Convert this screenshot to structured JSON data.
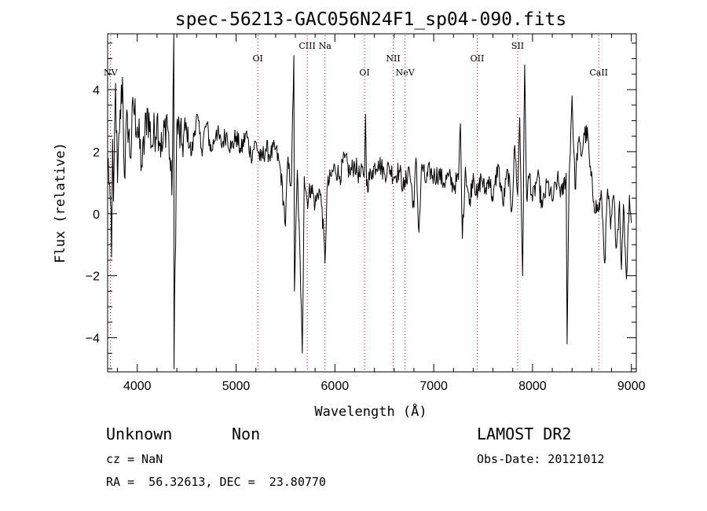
{
  "chart_data": {
    "type": "line",
    "title": "spec-56213-GAC056N24F1_sp04-090.fits",
    "xlabel": "Wavelength (Å)",
    "ylabel": "Flux (relative)",
    "xlim": [
      3700,
      9050
    ],
    "ylim": [
      -5.1,
      5.8
    ],
    "xticks": [
      4000,
      5000,
      6000,
      7000,
      8000,
      9000
    ],
    "xtick_labels": [
      "4000",
      "5000",
      "6000",
      "7000",
      "8000",
      "9000"
    ],
    "yticks": [
      -4,
      -2,
      0,
      2,
      4
    ],
    "ytick_labels": [
      "−4",
      "−2",
      "0",
      "2",
      "4"
    ],
    "grid": false,
    "line_color": "#000000",
    "marker_color": "#cc0000",
    "spectrum_anchors": [
      [
        3700,
        1.8
      ],
      [
        3720,
        1.0
      ],
      [
        3740,
        -1.4
      ],
      [
        3750,
        2.4
      ],
      [
        3760,
        0.4
      ],
      [
        3780,
        4.2
      ],
      [
        3800,
        1.0
      ],
      [
        3820,
        2.6
      ],
      [
        3850,
        4.4
      ],
      [
        3870,
        1.2
      ],
      [
        3900,
        3.2
      ],
      [
        3930,
        1.8
      ],
      [
        3960,
        3.5
      ],
      [
        4000,
        2.8
      ],
      [
        4050,
        1.5
      ],
      [
        4100,
        3.4
      ],
      [
        4150,
        2.2
      ],
      [
        4200,
        3.1
      ],
      [
        4250,
        2.0
      ],
      [
        4300,
        3.2
      ],
      [
        4330,
        1.8
      ],
      [
        4350,
        0.6
      ],
      [
        4370,
        5.8
      ],
      [
        4372,
        -5.0
      ],
      [
        4400,
        2.9
      ],
      [
        4450,
        2.2
      ],
      [
        4500,
        2.7
      ],
      [
        4550,
        1.9
      ],
      [
        4600,
        3.2
      ],
      [
        4650,
        2.1
      ],
      [
        4700,
        2.9
      ],
      [
        4750,
        2.0
      ],
      [
        4800,
        2.7
      ],
      [
        4850,
        2.2
      ],
      [
        4900,
        2.6
      ],
      [
        4950,
        2.1
      ],
      [
        5000,
        2.5
      ],
      [
        5050,
        2.0
      ],
      [
        5100,
        2.6
      ],
      [
        5150,
        1.9
      ],
      [
        5200,
        2.3
      ],
      [
        5250,
        1.7
      ],
      [
        5300,
        2.1
      ],
      [
        5350,
        1.9
      ],
      [
        5400,
        2.1
      ],
      [
        5450,
        1.4
      ],
      [
        5480,
        0.4
      ],
      [
        5500,
        -0.4
      ],
      [
        5520,
        1.6
      ],
      [
        5560,
        1.0
      ],
      [
        5585,
        5.1
      ],
      [
        5590,
        -2.5
      ],
      [
        5620,
        1.4
      ],
      [
        5660,
        -3.0
      ],
      [
        5670,
        -4.5
      ],
      [
        5690,
        1.2
      ],
      [
        5720,
        0.4
      ],
      [
        5760,
        0.9
      ],
      [
        5800,
        0.3
      ],
      [
        5840,
        0.8
      ],
      [
        5870,
        0.2
      ],
      [
        5900,
        -1.6
      ],
      [
        5920,
        0.8
      ],
      [
        5960,
        1.2
      ],
      [
        6000,
        1.5
      ],
      [
        6050,
        1.2
      ],
      [
        6100,
        1.8
      ],
      [
        6150,
        1.3
      ],
      [
        6200,
        1.6
      ],
      [
        6250,
        1.2
      ],
      [
        6300,
        1.4
      ],
      [
        6310,
        3.2
      ],
      [
        6320,
        0.9
      ],
      [
        6380,
        1.4
      ],
      [
        6440,
        1.7
      ],
      [
        6500,
        1.3
      ],
      [
        6550,
        1.5
      ],
      [
        6600,
        1.2
      ],
      [
        6650,
        1.4
      ],
      [
        6700,
        0.8
      ],
      [
        6750,
        1.5
      ],
      [
        6800,
        0.2
      ],
      [
        6820,
        1.8
      ],
      [
        6850,
        -0.6
      ],
      [
        6880,
        1.6
      ],
      [
        6920,
        1.0
      ],
      [
        6960,
        1.4
      ],
      [
        7000,
        1.2
      ],
      [
        7050,
        1.3
      ],
      [
        7100,
        1.0
      ],
      [
        7150,
        1.2
      ],
      [
        7200,
        0.9
      ],
      [
        7250,
        1.1
      ],
      [
        7270,
        2.9
      ],
      [
        7290,
        -0.8
      ],
      [
        7320,
        1.5
      ],
      [
        7360,
        0.3
      ],
      [
        7400,
        1.3
      ],
      [
        7440,
        0.5
      ],
      [
        7480,
        1.2
      ],
      [
        7520,
        0.7
      ],
      [
        7560,
        1.2
      ],
      [
        7600,
        0.4
      ],
      [
        7650,
        1.6
      ],
      [
        7700,
        0.3
      ],
      [
        7750,
        1.4
      ],
      [
        7790,
        0.1
      ],
      [
        7820,
        2.2
      ],
      [
        7850,
        0.6
      ],
      [
        7870,
        3.1
      ],
      [
        7900,
        -2.0
      ],
      [
        7920,
        4.8
      ],
      [
        7940,
        0.5
      ],
      [
        7970,
        1.3
      ],
      [
        8000,
        0.4
      ],
      [
        8050,
        1.2
      ],
      [
        8100,
        0.2
      ],
      [
        8150,
        1.0
      ],
      [
        8200,
        0.4
      ],
      [
        8250,
        1.1
      ],
      [
        8300,
        0.6
      ],
      [
        8340,
        1.3
      ],
      [
        8350,
        -4.2
      ],
      [
        8370,
        1.2
      ],
      [
        8400,
        3.8
      ],
      [
        8430,
        0.8
      ],
      [
        8460,
        2.3
      ],
      [
        8500,
        1.9
      ],
      [
        8520,
        2.6
      ],
      [
        8560,
        2.5
      ],
      [
        8580,
        1.5
      ],
      [
        8620,
        0.4
      ],
      [
        8660,
        0.1
      ],
      [
        8700,
        0.5
      ],
      [
        8730,
        -1.6
      ],
      [
        8760,
        0.8
      ],
      [
        8790,
        -0.5
      ],
      [
        8820,
        0.6
      ],
      [
        8850,
        -1.1
      ],
      [
        8880,
        0.4
      ],
      [
        8900,
        -1.8
      ],
      [
        8920,
        0.3
      ],
      [
        8950,
        -2.1
      ],
      [
        8980,
        0.6
      ],
      [
        9000,
        -0.3
      ]
    ],
    "emission_lines": [
      {
        "label": "NV",
        "x": 3730,
        "level": 2
      },
      {
        "label": "OI",
        "x": 5220,
        "level": 1
      },
      {
        "label": "CIII",
        "x": 5720,
        "level": 0
      },
      {
        "label": "Na",
        "x": 5900,
        "level": 0
      },
      {
        "label": "OI",
        "x": 6300,
        "level": 2
      },
      {
        "label": "NII",
        "x": 6590,
        "level": 1
      },
      {
        "label": "NeV",
        "x": 6710,
        "level": 2
      },
      {
        "label": "OII",
        "x": 7440,
        "level": 1
      },
      {
        "label": "SII",
        "x": 7850,
        "level": 0
      },
      {
        "label": "CaII",
        "x": 8670,
        "level": 2
      }
    ]
  },
  "info": {
    "class": "Unknown",
    "subclass": "Non",
    "survey": "LAMOST DR2",
    "cz": "cz = NaN",
    "obs_date": "Obs-Date: 20121012",
    "coords": "RA =  56.32613, DEC =  23.80770"
  }
}
